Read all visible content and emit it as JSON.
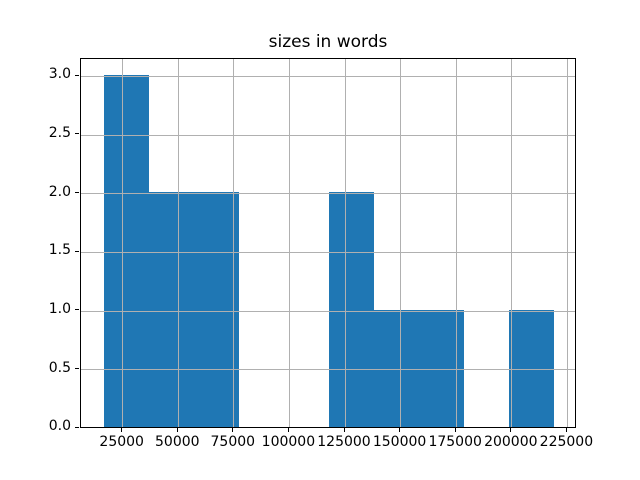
{
  "figure": {
    "background": "#ffffff"
  },
  "chart_data": {
    "type": "bar",
    "subtype": "histogram",
    "title": "sizes in words",
    "xlabel": "",
    "ylabel": "",
    "bar_color": "#1f77b4",
    "grid": true,
    "grid_color": "#b0b0b0",
    "spine_color": "#000000",
    "text_color": "#000000",
    "legend_position": "none",
    "bin_edges": [
      16400,
      36680,
      56960,
      77240,
      97520,
      117800,
      138080,
      158360,
      178640,
      198920,
      219200
    ],
    "counts": [
      3,
      2,
      2,
      0,
      0,
      2,
      1,
      1,
      0,
      1
    ],
    "xtick_values": [
      25000,
      50000,
      75000,
      100000,
      125000,
      150000,
      175000,
      200000,
      225000
    ],
    "xtick_labels": [
      "25000",
      "50000",
      "75000",
      "100000",
      "125000",
      "150000",
      "175000",
      "200000",
      "225000"
    ],
    "ytick_values": [
      0.0,
      0.5,
      1.0,
      1.5,
      2.0,
      2.5,
      3.0
    ],
    "ytick_labels": [
      "0.0",
      "0.5",
      "1.0",
      "1.5",
      "2.0",
      "2.5",
      "3.0"
    ],
    "xlim": [
      6260,
      229340
    ],
    "ylim": [
      0,
      3.15
    ]
  }
}
